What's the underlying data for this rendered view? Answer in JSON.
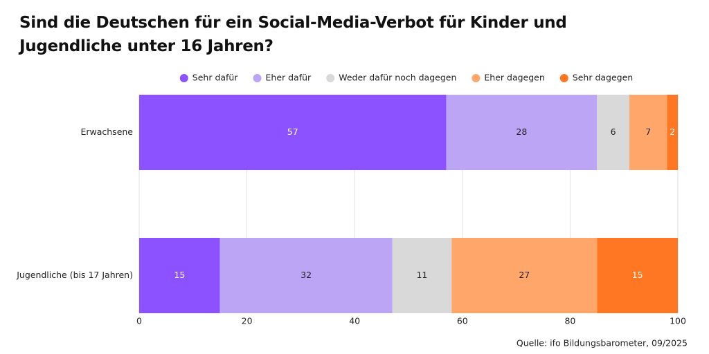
{
  "chart_data": {
    "type": "stacked-bar-horizontal",
    "title": "Sind die Deutschen für ein Social-Media-Verbot für Kinder und Jugendliche unter 16 Jahren?",
    "source": "Quelle: ifo Bildungsbarometer, 09/2025",
    "categories": [
      "Erwachsene",
      "Jugendliche (bis 17 Jahren)"
    ],
    "series": [
      {
        "name": "Sehr dafür",
        "color": "#8c52ff",
        "label_color": "#ffffff",
        "values": [
          57,
          15
        ]
      },
      {
        "name": "Eher dafür",
        "color": "#bca5f5",
        "label_color": "#222222",
        "values": [
          28,
          32
        ]
      },
      {
        "name": "Weder dafür noch dagegen",
        "color": "#d9d9d9",
        "label_color": "#222222",
        "values": [
          6,
          11
        ]
      },
      {
        "name": "Eher dagegen",
        "color": "#ffa76b",
        "label_color": "#222222",
        "values": [
          7,
          27
        ]
      },
      {
        "name": "Sehr dagegen",
        "color": "#ff7722",
        "label_color": "#ffffff",
        "values": [
          2,
          15
        ]
      }
    ],
    "xlim": [
      0,
      100
    ],
    "xticks": [
      0,
      20,
      40,
      60,
      80,
      100
    ],
    "grid": true
  }
}
